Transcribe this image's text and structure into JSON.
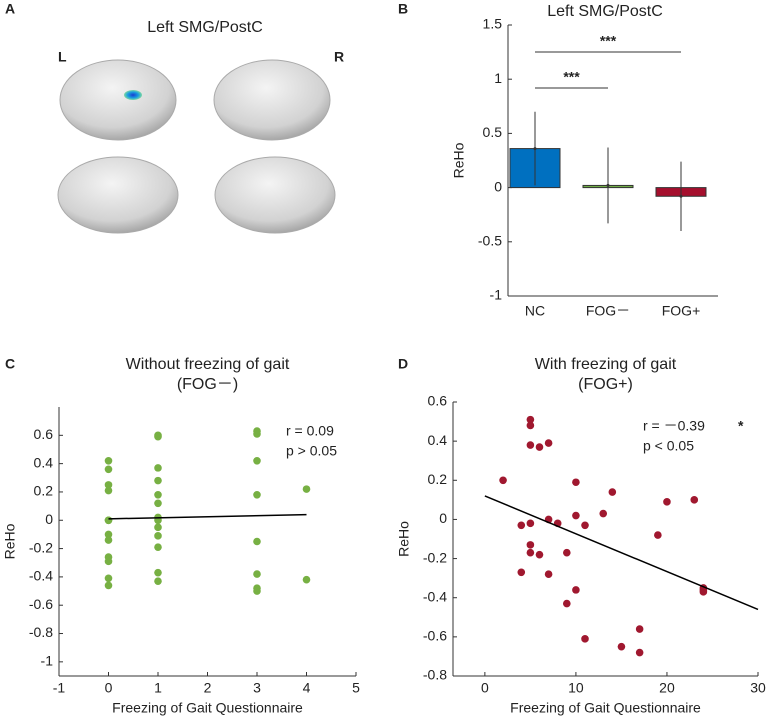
{
  "chart_data": [
    {
      "type": "brain",
      "panel_label": "A",
      "title": "Left SMG/PostC",
      "left_label": "L",
      "right_label": "R"
    },
    {
      "type": "bar",
      "panel_label": "B",
      "title": "Left SMG/PostC",
      "ylabel": "ReHo",
      "categories": [
        "NC",
        "FOG－",
        "FOG+"
      ],
      "values": [
        0.36,
        0.02,
        -0.08
      ],
      "errors": [
        0.34,
        0.35,
        0.32
      ],
      "colors": [
        "#0070c0",
        "#70ad47",
        "#a50f2d"
      ],
      "ylim": [
        -1,
        1.5
      ],
      "yticks": [
        -1,
        -0.5,
        0,
        0.5,
        1,
        1.5
      ],
      "significance": [
        {
          "pair": [
            0,
            2
          ],
          "label": "***"
        },
        {
          "pair": [
            0,
            1
          ],
          "label": "***"
        }
      ]
    },
    {
      "type": "scatter",
      "panel_label": "C",
      "title": "Without freezing of gait",
      "subtitle": "(FOG－)",
      "xlabel": "Freezing of Gait Questionnaire",
      "ylabel": "ReHo",
      "color": "#77b043",
      "x": [
        0,
        0,
        0,
        0,
        0,
        0,
        0,
        0,
        0,
        0,
        0,
        0,
        1,
        1,
        1,
        1,
        1,
        1,
        1,
        1,
        1,
        1,
        1,
        1,
        1,
        3,
        3,
        3,
        3,
        3,
        3,
        3,
        3,
        4,
        4
      ],
      "values": [
        0.42,
        0.36,
        0.25,
        0.21,
        0,
        -0.1,
        -0.14,
        -0.26,
        -0.29,
        -0.41,
        -0.46,
        0.0,
        0.6,
        0.59,
        0.37,
        0.28,
        0.18,
        0.12,
        0.02,
        -0.05,
        -0.11,
        -0.19,
        -0.37,
        -0.43,
        0.0,
        0.63,
        0.61,
        0.42,
        0.18,
        -0.15,
        -0.38,
        -0.48,
        -0.5,
        0.22,
        -0.42
      ],
      "fit": {
        "x": [
          0,
          4
        ],
        "y": [
          0.01,
          0.04
        ],
        "color": "#000000"
      },
      "annotations": [
        {
          "text": "r = 0.09"
        },
        {
          "text": "p > 0.05"
        }
      ],
      "xlim": [
        -1,
        5
      ],
      "xticks": [
        -1,
        0,
        1,
        2,
        3,
        4,
        5
      ],
      "ylim": [
        -1.1,
        0.8
      ],
      "yticks": [
        -1,
        -0.8,
        -0.6,
        -0.4,
        -0.2,
        0,
        0.2,
        0.4,
        0.6
      ]
    },
    {
      "type": "scatter",
      "panel_label": "D",
      "title": "With freezing of gait",
      "subtitle": "(FOG+)",
      "xlabel": "Freezing of Gait Questionnaire",
      "ylabel": "ReHo",
      "color": "#a0182f",
      "x": [
        2,
        4,
        4,
        5,
        5,
        5,
        5,
        5,
        5,
        6,
        6,
        7,
        7,
        7,
        8,
        9,
        9,
        10,
        10,
        10,
        11,
        11,
        13,
        14,
        15,
        17,
        17,
        19,
        20,
        23,
        24,
        24,
        24
      ],
      "values": [
        0.2,
        -0.03,
        -0.27,
        0.51,
        0.48,
        0.38,
        -0.02,
        -0.13,
        -0.17,
        0.37,
        -0.18,
        0.39,
        0.0,
        -0.28,
        -0.02,
        -0.17,
        -0.43,
        0.19,
        0.02,
        -0.36,
        -0.03,
        -0.61,
        0.03,
        0.14,
        -0.65,
        -0.56,
        -0.68,
        -0.08,
        0.09,
        0.1,
        -0.35,
        -0.36,
        -0.37
      ],
      "fit": {
        "x": [
          0,
          30
        ],
        "y": [
          0.12,
          -0.46
        ],
        "color": "#000000"
      },
      "annotations": [
        {
          "text": "r = －0.39",
          "note": "*"
        },
        {
          "text": "p < 0.05"
        }
      ],
      "xlim": [
        -3.5,
        30
      ],
      "xticks": [
        0,
        10,
        20,
        30
      ],
      "ylim": [
        -0.8,
        0.6
      ],
      "yticks": [
        -0.8,
        -0.6,
        -0.4,
        -0.2,
        0,
        0.2,
        0.4,
        0.6
      ]
    }
  ]
}
